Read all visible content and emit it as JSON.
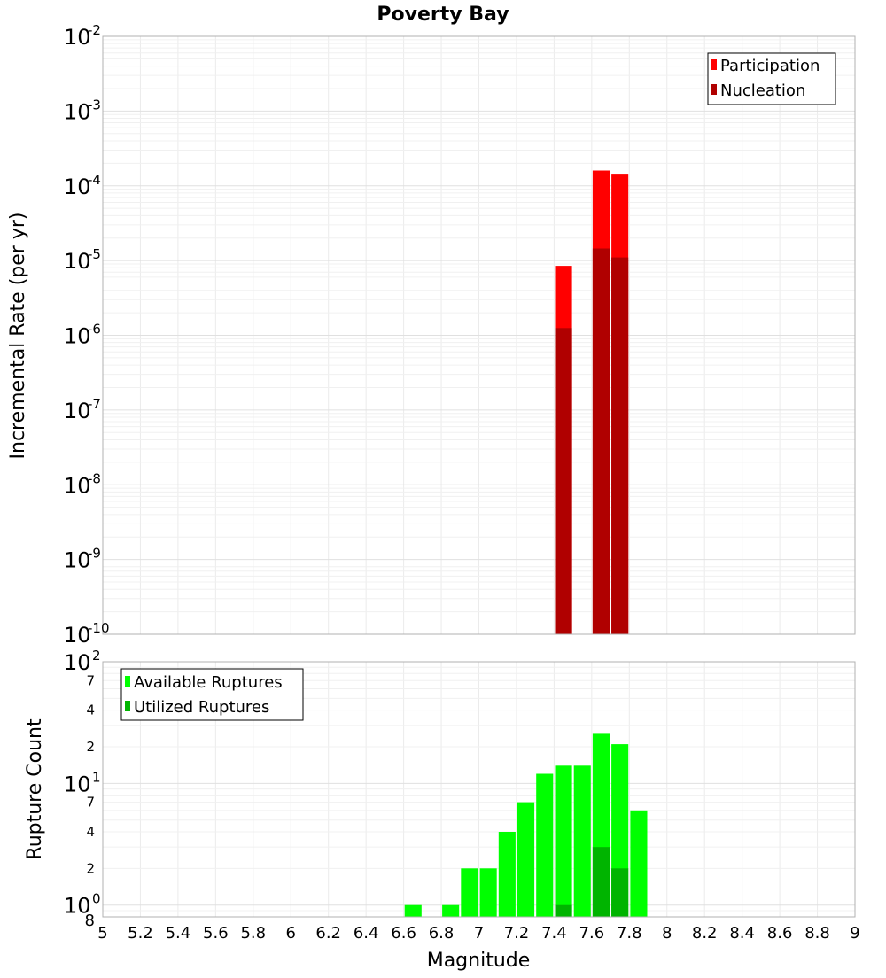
{
  "chart_data": [
    {
      "type": "bar",
      "title": "Poverty Bay",
      "xlabel": "",
      "ylabel": "Incremental Rate (per yr)",
      "yscale": "log",
      "xlim": [
        5,
        9
      ],
      "ylim": [
        1e-10,
        0.01
      ],
      "y_tick_labels": [
        {
          "base": "10",
          "exp": "-10"
        },
        {
          "base": "10",
          "exp": "-9"
        },
        {
          "base": "10",
          "exp": "-8"
        },
        {
          "base": "10",
          "exp": "-7"
        },
        {
          "base": "10",
          "exp": "-6"
        },
        {
          "base": "10",
          "exp": "-5"
        },
        {
          "base": "10",
          "exp": "-4"
        },
        {
          "base": "10",
          "exp": "-3"
        },
        {
          "base": "10",
          "exp": "-2"
        }
      ],
      "grid": true,
      "legend_position": "top-right",
      "bar_width": 0.09,
      "series": [
        {
          "name": "Participation",
          "color": "#ff0000",
          "x": [
            7.45,
            7.65,
            7.75
          ],
          "values": [
            8.5e-06,
            0.00016,
            0.000145
          ]
        },
        {
          "name": "Nucleation",
          "color": "#b00000",
          "x": [
            7.45,
            7.65,
            7.75
          ],
          "values": [
            1.25e-06,
            1.45e-05,
            1.1e-05
          ]
        }
      ]
    },
    {
      "type": "bar",
      "title": "",
      "xlabel": "Magnitude",
      "ylabel": "Rupture Count",
      "yscale": "log",
      "xlim": [
        5,
        9
      ],
      "ylim": [
        0.8,
        100
      ],
      "x_tick_labels": [
        "5",
        "5.2",
        "5.4",
        "5.6",
        "5.8",
        "6",
        "6.2",
        "6.4",
        "6.6",
        "6.8",
        "7",
        "7.2",
        "7.4",
        "7.6",
        "7.8",
        "8",
        "8.2",
        "8.4",
        "8.6",
        "8.8",
        "9"
      ],
      "y_major_ticks": [
        {
          "value": 1,
          "base": "10",
          "exp": "0"
        },
        {
          "value": 10,
          "base": "10",
          "exp": "1"
        },
        {
          "value": 100,
          "base": "10",
          "exp": "2"
        }
      ],
      "y_minor_ticks": [
        {
          "value": 0.8,
          "label": "8"
        },
        {
          "value": 2,
          "label": "2"
        },
        {
          "value": 4,
          "label": "4"
        },
        {
          "value": 7,
          "label": "7"
        },
        {
          "value": 20,
          "label": "2"
        },
        {
          "value": 40,
          "label": "4"
        },
        {
          "value": 70,
          "label": "7"
        }
      ],
      "grid": true,
      "legend_position": "top-left",
      "bar_width": 0.09,
      "series": [
        {
          "name": "Available Ruptures",
          "color": "#00ff00",
          "x": [
            6.65,
            6.85,
            6.95,
            7.05,
            7.15,
            7.25,
            7.35,
            7.45,
            7.55,
            7.65,
            7.75,
            7.85
          ],
          "values": [
            1,
            1,
            2,
            2,
            4,
            7,
            12,
            14,
            14,
            26,
            21,
            6
          ]
        },
        {
          "name": "Utilized Ruptures",
          "color": "#00b400",
          "x": [
            7.45,
            7.65,
            7.75
          ],
          "values": [
            1,
            3,
            2
          ]
        }
      ]
    }
  ]
}
